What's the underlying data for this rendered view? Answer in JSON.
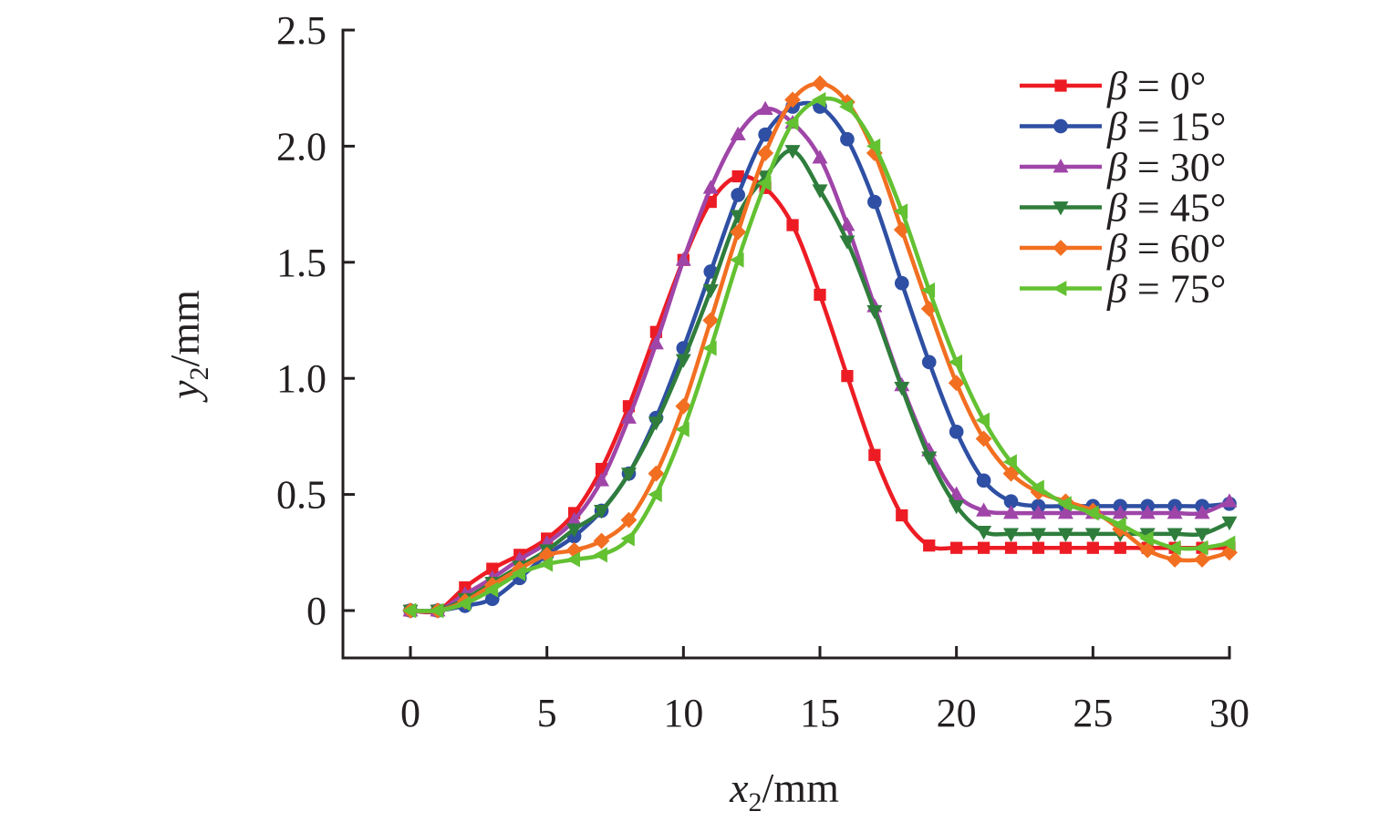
{
  "chart_data": {
    "type": "line",
    "title": "",
    "xlabel": "x2/mm",
    "ylabel": "y2/mm",
    "xlabel_parts": {
      "var": "x",
      "sub": "2",
      "unit": "/mm"
    },
    "ylabel_parts": {
      "var": "y",
      "sub": "2",
      "unit": "/mm"
    },
    "xlim": [
      -2.5,
      30
    ],
    "ylim": [
      -0.2,
      2.5
    ],
    "xticks": [
      0,
      5,
      10,
      15,
      20,
      25,
      30
    ],
    "xtick_labels": [
      "0",
      "5",
      "10",
      "15",
      "20",
      "25",
      "30"
    ],
    "yticks": [
      0,
      0.5,
      1.0,
      1.5,
      2.0,
      2.5
    ],
    "ytick_labels": [
      "0",
      "0.5",
      "1.0",
      "1.5",
      "2.0",
      "2.5"
    ],
    "grid": false,
    "legend_position": "top-right",
    "smooth": true,
    "x": [
      0,
      1,
      2,
      3,
      4,
      5,
      6,
      7,
      8,
      9,
      10,
      11,
      12,
      13,
      14,
      15,
      16,
      17,
      18,
      19,
      20,
      21,
      22,
      23,
      24,
      25,
      26,
      27,
      28,
      29,
      30
    ],
    "series": [
      {
        "name": "β = 0°",
        "color": "#ed1c24",
        "marker": "square",
        "values": [
          0,
          0,
          0.1,
          0.18,
          0.24,
          0.31,
          0.42,
          0.61,
          0.88,
          1.2,
          1.51,
          1.76,
          1.87,
          1.82,
          1.66,
          1.36,
          1.01,
          0.67,
          0.41,
          0.28,
          0.27,
          0.27,
          0.27,
          0.27,
          0.27,
          0.27,
          0.27,
          0.27,
          0.27,
          0.27,
          0.27
        ]
      },
      {
        "name": "β = 15°",
        "color": "#2e4fa3",
        "marker": "circle",
        "values": [
          0,
          0,
          0.02,
          0.05,
          0.14,
          0.24,
          0.32,
          0.43,
          0.59,
          0.83,
          1.13,
          1.46,
          1.79,
          2.05,
          2.17,
          2.17,
          2.03,
          1.76,
          1.41,
          1.07,
          0.77,
          0.56,
          0.47,
          0.45,
          0.45,
          0.45,
          0.45,
          0.45,
          0.45,
          0.45,
          0.46
        ]
      },
      {
        "name": "β = 30°",
        "color": "#9f45a8",
        "marker": "triangle-up",
        "values": [
          0,
          0,
          0.07,
          0.14,
          0.22,
          0.29,
          0.39,
          0.56,
          0.83,
          1.15,
          1.51,
          1.82,
          2.05,
          2.16,
          2.1,
          1.95,
          1.66,
          1.31,
          0.97,
          0.69,
          0.5,
          0.43,
          0.42,
          0.42,
          0.42,
          0.42,
          0.42,
          0.42,
          0.42,
          0.42,
          0.47
        ]
      },
      {
        "name": "β = 45°",
        "color": "#2f7d3c",
        "marker": "triangle-down",
        "values": [
          0,
          0,
          0.05,
          0.12,
          0.19,
          0.26,
          0.35,
          0.43,
          0.59,
          0.81,
          1.08,
          1.38,
          1.7,
          1.87,
          1.98,
          1.81,
          1.59,
          1.29,
          0.96,
          0.66,
          0.45,
          0.34,
          0.33,
          0.33,
          0.33,
          0.33,
          0.33,
          0.33,
          0.33,
          0.33,
          0.38
        ]
      },
      {
        "name": "β = 60°",
        "color": "#f26f21",
        "marker": "diamond",
        "values": [
          0,
          0,
          0.04,
          0.11,
          0.18,
          0.24,
          0.26,
          0.3,
          0.39,
          0.59,
          0.88,
          1.25,
          1.63,
          1.97,
          2.2,
          2.27,
          2.19,
          1.97,
          1.64,
          1.3,
          0.98,
          0.74,
          0.59,
          0.51,
          0.47,
          0.43,
          0.35,
          0.26,
          0.22,
          0.22,
          0.25
        ]
      },
      {
        "name": "β = 75°",
        "color": "#63c132",
        "marker": "triangle-left",
        "values": [
          0,
          0,
          0.03,
          0.09,
          0.16,
          0.2,
          0.22,
          0.24,
          0.31,
          0.5,
          0.78,
          1.13,
          1.51,
          1.84,
          2.1,
          2.2,
          2.17,
          2.0,
          1.72,
          1.38,
          1.07,
          0.82,
          0.64,
          0.53,
          0.46,
          0.42,
          0.37,
          0.31,
          0.27,
          0.27,
          0.29
        ]
      }
    ]
  }
}
